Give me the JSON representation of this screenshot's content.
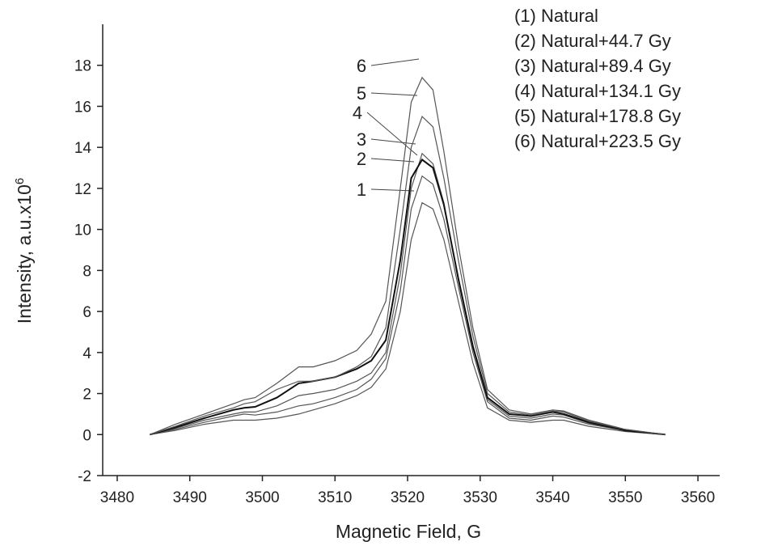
{
  "chart_data": {
    "type": "line",
    "xlabel": "Magnetic Field, G",
    "ylabel": "Intensity, a.u.x10",
    "ylabel_exponent": "6",
    "xlim": [
      3478,
      3563
    ],
    "xticks": [
      3480,
      3490,
      3500,
      3510,
      3520,
      3530,
      3540,
      3550,
      3560
    ],
    "ylim": [
      -2,
      20
    ],
    "yticks": [
      -2,
      0,
      2,
      4,
      6,
      8,
      10,
      12,
      14,
      16,
      18
    ],
    "x": [
      3484.5,
      3488,
      3492,
      3496,
      3497.5,
      3499,
      3502,
      3505,
      3507,
      3510,
      3513,
      3515,
      3517,
      3519,
      3520.5,
      3522,
      3523.5,
      3525,
      3527,
      3529,
      3531,
      3534,
      3537,
      3540,
      3541.5,
      3545,
      3550,
      3555.5
    ],
    "series": [
      {
        "name": "(1) Natural",
        "label": "1",
        "color": "#555555",
        "values": [
          0,
          0.2,
          0.5,
          0.7,
          0.7,
          0.7,
          0.8,
          1.0,
          1.2,
          1.5,
          1.9,
          2.3,
          3.2,
          6,
          9.5,
          11.3,
          11,
          9.5,
          6.5,
          3.5,
          1.3,
          0.7,
          0.6,
          0.7,
          0.7,
          0.4,
          0.15,
          0
        ]
      },
      {
        "name": "(2) Natural+44.7 Gy",
        "label": "2",
        "color": "#555555",
        "values": [
          0,
          0.25,
          0.6,
          0.9,
          1.0,
          0.95,
          1.1,
          1.4,
          1.5,
          1.8,
          2.2,
          2.7,
          3.7,
          7,
          11,
          12.6,
          12.2,
          10.5,
          7.2,
          4,
          1.6,
          0.8,
          0.7,
          0.9,
          0.85,
          0.5,
          0.2,
          0
        ]
      },
      {
        "name": "(3) Natural+89.4 Gy",
        "label": "3",
        "color": "#555555",
        "values": [
          0,
          0.3,
          0.7,
          1.0,
          1.1,
          1.1,
          1.4,
          1.9,
          2.0,
          2.2,
          2.6,
          3.0,
          4.0,
          7.8,
          12,
          13.7,
          13.2,
          11.3,
          7.5,
          4.2,
          1.7,
          0.9,
          0.8,
          1.0,
          0.95,
          0.55,
          0.2,
          0
        ]
      },
      {
        "name": "(4) Natural+134.1 Gy",
        "label": "4",
        "color": "#111111",
        "values": [
          0,
          0.35,
          0.8,
          1.2,
          1.3,
          1.35,
          1.8,
          2.5,
          2.6,
          2.8,
          3.2,
          3.6,
          4.6,
          8.5,
          12.5,
          13.4,
          13.0,
          11.2,
          7.6,
          4.3,
          1.8,
          1.0,
          0.9,
          1.1,
          1.0,
          0.6,
          0.2,
          0
        ]
      },
      {
        "name": "(5) Natural+178.8 Gy",
        "label": "5",
        "color": "#555555",
        "values": [
          0,
          0.4,
          0.9,
          1.3,
          1.5,
          1.6,
          2.2,
          2.6,
          2.6,
          2.8,
          3.3,
          3.8,
          5.2,
          10,
          14,
          15.5,
          15,
          12.5,
          8.5,
          4.8,
          2,
          1.1,
          0.95,
          1.15,
          1.1,
          0.65,
          0.25,
          0
        ]
      },
      {
        "name": "(6) Natural+223.5 Gy",
        "label": "6",
        "color": "#555555",
        "values": [
          0,
          0.5,
          1.0,
          1.5,
          1.7,
          1.8,
          2.5,
          3.3,
          3.3,
          3.6,
          4.1,
          4.9,
          6.5,
          12,
          16.2,
          17.4,
          16.8,
          13.8,
          9.2,
          5.2,
          2.2,
          1.2,
          1.0,
          1.2,
          1.15,
          0.7,
          0.25,
          0
        ]
      }
    ]
  }
}
